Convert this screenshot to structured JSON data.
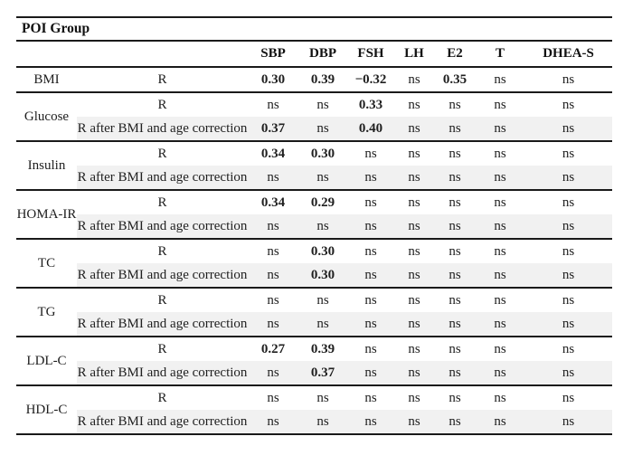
{
  "title": "POI Group",
  "columns": [
    "SBP",
    "DBP",
    "FSH",
    "LH",
    "E2",
    "T",
    "DHEA-S"
  ],
  "row_labels": {
    "r": "R",
    "r_corrected": "R after BMI and age correction"
  },
  "colors": {
    "highlight": "#b9b9b9",
    "row_shade": "#f1f1f1",
    "rule": "#1a1a1a"
  },
  "groups": [
    {
      "name": "BMI",
      "rows": [
        {
          "label": "R",
          "shaded": false,
          "cells": [
            {
              "t": "0.30",
              "b": true
            },
            {
              "t": "0.39",
              "b": true
            },
            {
              "t": "−0.32",
              "b": true
            },
            {
              "t": "ns"
            },
            {
              "t": "0.35",
              "b": true
            },
            {
              "t": "ns"
            },
            {
              "t": "ns"
            }
          ]
        }
      ]
    },
    {
      "name": "Glucose",
      "rows": [
        {
          "label": "R",
          "shaded": false,
          "cells": [
            {
              "t": "ns"
            },
            {
              "t": "ns"
            },
            {
              "t": "0.33",
              "b": true
            },
            {
              "t": "ns"
            },
            {
              "t": "ns"
            },
            {
              "t": "ns"
            },
            {
              "t": "ns"
            }
          ]
        },
        {
          "label": "R after BMI and age correction",
          "shaded": true,
          "cells": [
            {
              "t": "0.37",
              "b": true,
              "h": true
            },
            {
              "t": "ns"
            },
            {
              "t": "0.40",
              "b": true,
              "h": true
            },
            {
              "t": "ns"
            },
            {
              "t": "ns"
            },
            {
              "t": "ns"
            },
            {
              "t": "ns"
            }
          ]
        }
      ]
    },
    {
      "name": "Insulin",
      "rows": [
        {
          "label": "R",
          "shaded": false,
          "cells": [
            {
              "t": "0.34",
              "b": true
            },
            {
              "t": "0.30",
              "b": true
            },
            {
              "t": "ns"
            },
            {
              "t": "ns"
            },
            {
              "t": "ns"
            },
            {
              "t": "ns"
            },
            {
              "t": "ns"
            }
          ]
        },
        {
          "label": "R after BMI and age correction",
          "shaded": true,
          "cells": [
            {
              "t": "ns"
            },
            {
              "t": "ns"
            },
            {
              "t": "ns"
            },
            {
              "t": "ns"
            },
            {
              "t": "ns"
            },
            {
              "t": "ns"
            },
            {
              "t": "ns"
            }
          ]
        }
      ]
    },
    {
      "name": "HOMA-IR",
      "rows": [
        {
          "label": "R",
          "shaded": false,
          "cells": [
            {
              "t": "0.34",
              "b": true
            },
            {
              "t": "0.29",
              "b": true
            },
            {
              "t": "ns"
            },
            {
              "t": "ns"
            },
            {
              "t": "ns"
            },
            {
              "t": "ns"
            },
            {
              "t": "ns"
            }
          ]
        },
        {
          "label": "R after BMI and age correction",
          "shaded": true,
          "cells": [
            {
              "t": "ns"
            },
            {
              "t": "ns"
            },
            {
              "t": "ns"
            },
            {
              "t": "ns"
            },
            {
              "t": "ns"
            },
            {
              "t": "ns"
            },
            {
              "t": "ns"
            }
          ]
        }
      ]
    },
    {
      "name": "TC",
      "rows": [
        {
          "label": "R",
          "shaded": false,
          "cells": [
            {
              "t": "ns"
            },
            {
              "t": "0.30",
              "b": true
            },
            {
              "t": "ns"
            },
            {
              "t": "ns"
            },
            {
              "t": "ns"
            },
            {
              "t": "ns"
            },
            {
              "t": "ns"
            }
          ]
        },
        {
          "label": "R after BMI and age correction",
          "shaded": true,
          "cells": [
            {
              "t": "ns"
            },
            {
              "t": "0.30",
              "b": true,
              "h": true
            },
            {
              "t": "ns"
            },
            {
              "t": "ns"
            },
            {
              "t": "ns"
            },
            {
              "t": "ns"
            },
            {
              "t": "ns"
            }
          ]
        }
      ]
    },
    {
      "name": "TG",
      "rows": [
        {
          "label": "R",
          "shaded": false,
          "cells": [
            {
              "t": "ns"
            },
            {
              "t": "ns"
            },
            {
              "t": "ns"
            },
            {
              "t": "ns"
            },
            {
              "t": "ns"
            },
            {
              "t": "ns"
            },
            {
              "t": "ns"
            }
          ]
        },
        {
          "label": "R after BMI and age correction",
          "shaded": true,
          "cells": [
            {
              "t": "ns"
            },
            {
              "t": "ns"
            },
            {
              "t": "ns"
            },
            {
              "t": "ns"
            },
            {
              "t": "ns"
            },
            {
              "t": "ns"
            },
            {
              "t": "ns"
            }
          ]
        }
      ]
    },
    {
      "name": "LDL-C",
      "rows": [
        {
          "label": "R",
          "shaded": false,
          "cells": [
            {
              "t": "0.27",
              "b": true
            },
            {
              "t": "0.39",
              "b": true
            },
            {
              "t": "ns"
            },
            {
              "t": "ns"
            },
            {
              "t": "ns"
            },
            {
              "t": "ns"
            },
            {
              "t": "ns"
            }
          ]
        },
        {
          "label": "R after BMI and age correction",
          "shaded": true,
          "cells": [
            {
              "t": "ns"
            },
            {
              "t": "0.37",
              "b": true,
              "h": true
            },
            {
              "t": "ns"
            },
            {
              "t": "ns"
            },
            {
              "t": "ns"
            },
            {
              "t": "ns"
            },
            {
              "t": "ns"
            }
          ]
        }
      ]
    },
    {
      "name": "HDL-C",
      "rows": [
        {
          "label": "R",
          "shaded": false,
          "cells": [
            {
              "t": "ns"
            },
            {
              "t": "ns"
            },
            {
              "t": "ns"
            },
            {
              "t": "ns"
            },
            {
              "t": "ns"
            },
            {
              "t": "ns"
            },
            {
              "t": "ns"
            }
          ]
        },
        {
          "label": "R after BMI and age correction",
          "shaded": true,
          "cells": [
            {
              "t": "ns"
            },
            {
              "t": "ns"
            },
            {
              "t": "ns"
            },
            {
              "t": "ns"
            },
            {
              "t": "ns"
            },
            {
              "t": "ns"
            },
            {
              "t": "ns"
            }
          ]
        }
      ]
    }
  ]
}
